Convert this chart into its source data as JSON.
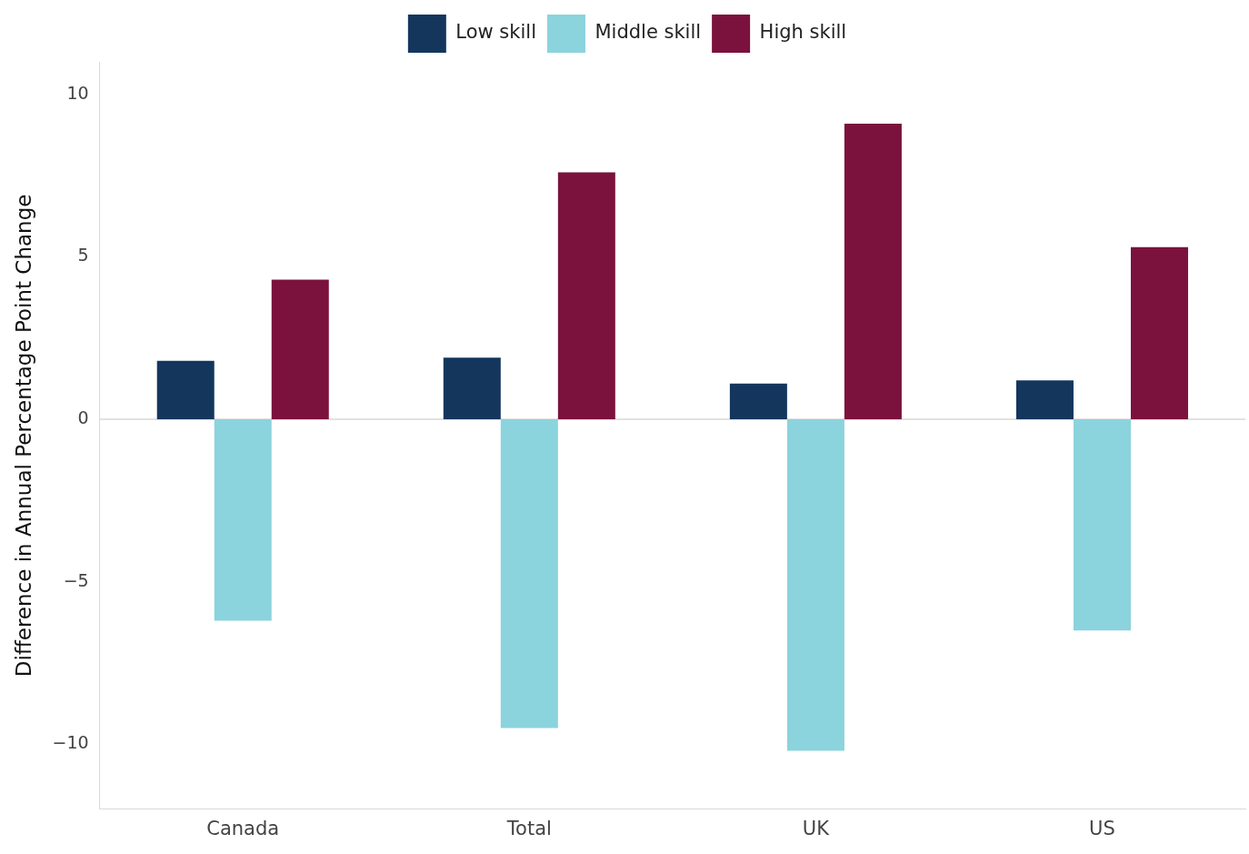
{
  "chart_data": {
    "type": "bar",
    "ylabel": "Difference in Annual Percentage Point Change",
    "categories": [
      "Canada",
      "Total",
      "UK",
      "US"
    ],
    "series": [
      {
        "name": "Low skill",
        "color": "#14365d",
        "values": [
          1.8,
          1.9,
          1.1,
          1.2
        ]
      },
      {
        "name": "Middle skill",
        "color": "#8bd3dd",
        "values": [
          -6.2,
          -9.5,
          -10.2,
          -6.5
        ]
      },
      {
        "name": "High skill",
        "color": "#7a123d",
        "values": [
          4.3,
          7.6,
          9.1,
          5.3
        ]
      }
    ],
    "ylim": [
      -12,
      11
    ],
    "yticks": [
      -10,
      -5,
      0,
      5,
      10
    ],
    "grid": false,
    "legend": "top",
    "ref_lines": [
      {
        "axis": "y",
        "value": 0,
        "color": "#d9d9d9"
      }
    ]
  }
}
